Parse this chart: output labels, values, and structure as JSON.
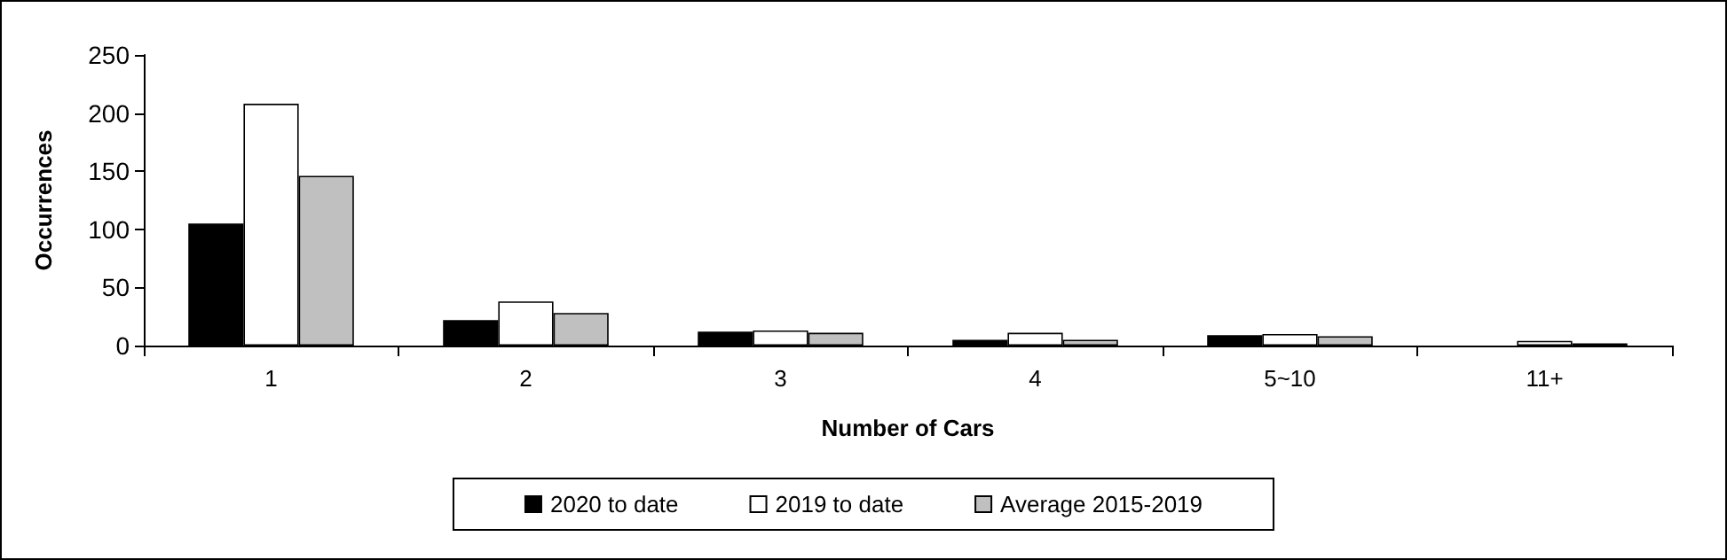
{
  "chart_data": {
    "type": "bar",
    "xlabel": "Number of Cars",
    "ylabel": "Occurrences",
    "categories": [
      "1",
      "2",
      "3",
      "4",
      "5~10",
      "11+"
    ],
    "series": [
      {
        "name": "2020 to date",
        "color": "#000000",
        "values": [
          105,
          22,
          12,
          5,
          9,
          null
        ]
      },
      {
        "name": "2019 to date",
        "color": "#ffffff",
        "values": [
          208,
          38,
          13,
          11,
          10,
          4
        ]
      },
      {
        "name": "Average 2015-2019",
        "color": "#c0c0c0",
        "values": [
          146,
          28,
          11,
          5,
          8,
          2
        ]
      }
    ],
    "ylim": [
      0,
      250
    ],
    "yticks": [
      0,
      50,
      100,
      150,
      200,
      250
    ],
    "grid": false,
    "legend": "bottom"
  }
}
